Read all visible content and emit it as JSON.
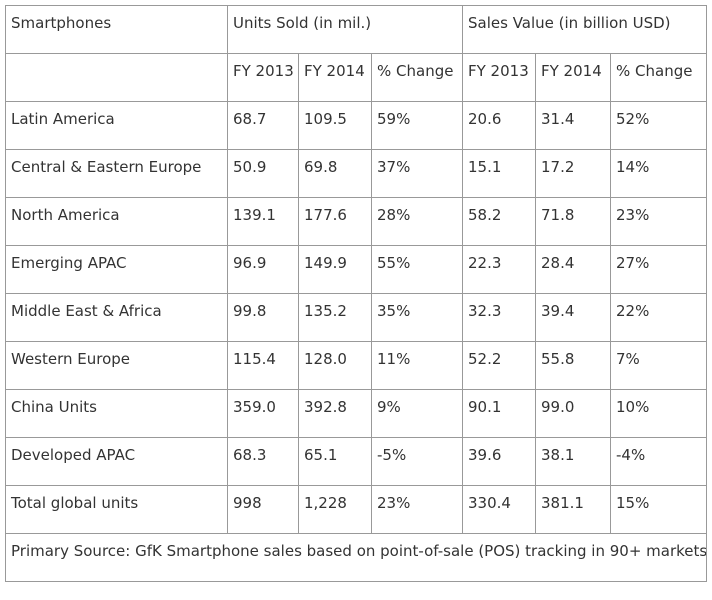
{
  "table": {
    "header_row1": {
      "region": "Smartphones",
      "units": "Units Sold (in mil.)",
      "sales": "Sales Value (in billion USD)"
    },
    "header_row2": [
      "FY 2013",
      "FY 2014",
      "% Change",
      "FY 2013",
      "FY 2014",
      "% Change"
    ],
    "rows": [
      {
        "region": "Latin America",
        "cells": [
          "68.7",
          "109.5",
          "59%",
          "20.6",
          "31.4",
          "52%"
        ]
      },
      {
        "region": "Central & Eastern Europe",
        "cells": [
          "50.9",
          "69.8",
          "37%",
          "15.1",
          "17.2",
          "14%"
        ]
      },
      {
        "region": "North America",
        "cells": [
          "139.1",
          "177.6",
          "28%",
          "58.2",
          "71.8",
          "23%"
        ]
      },
      {
        "region": "Emerging APAC",
        "cells": [
          "96.9",
          "149.9",
          "55%",
          "22.3",
          "28.4",
          "27%"
        ]
      },
      {
        "region": "Middle East & Africa",
        "cells": [
          "99.8",
          "135.2",
          "35%",
          "32.3",
          "39.4",
          "22%"
        ]
      },
      {
        "region": "Western Europe",
        "cells": [
          "115.4",
          "128.0",
          "11%",
          "52.2",
          "55.8",
          "7%"
        ]
      },
      {
        "region": "China Units",
        "cells": [
          "359.0",
          "392.8",
          "9%",
          "90.1",
          "99.0",
          "10%"
        ]
      },
      {
        "region": "Developed APAC",
        "cells": [
          "68.3",
          "65.1",
          "-5%",
          "39.6",
          "38.1",
          "-4%"
        ]
      },
      {
        "region": "Total global units",
        "cells": [
          "998",
          "1,228",
          "23%",
          "330.4",
          "381.1",
          "15%"
        ]
      }
    ],
    "source": "Primary Source: GfK Smartphone sales based on point-of-sale (POS) tracking in 90+ markets"
  }
}
